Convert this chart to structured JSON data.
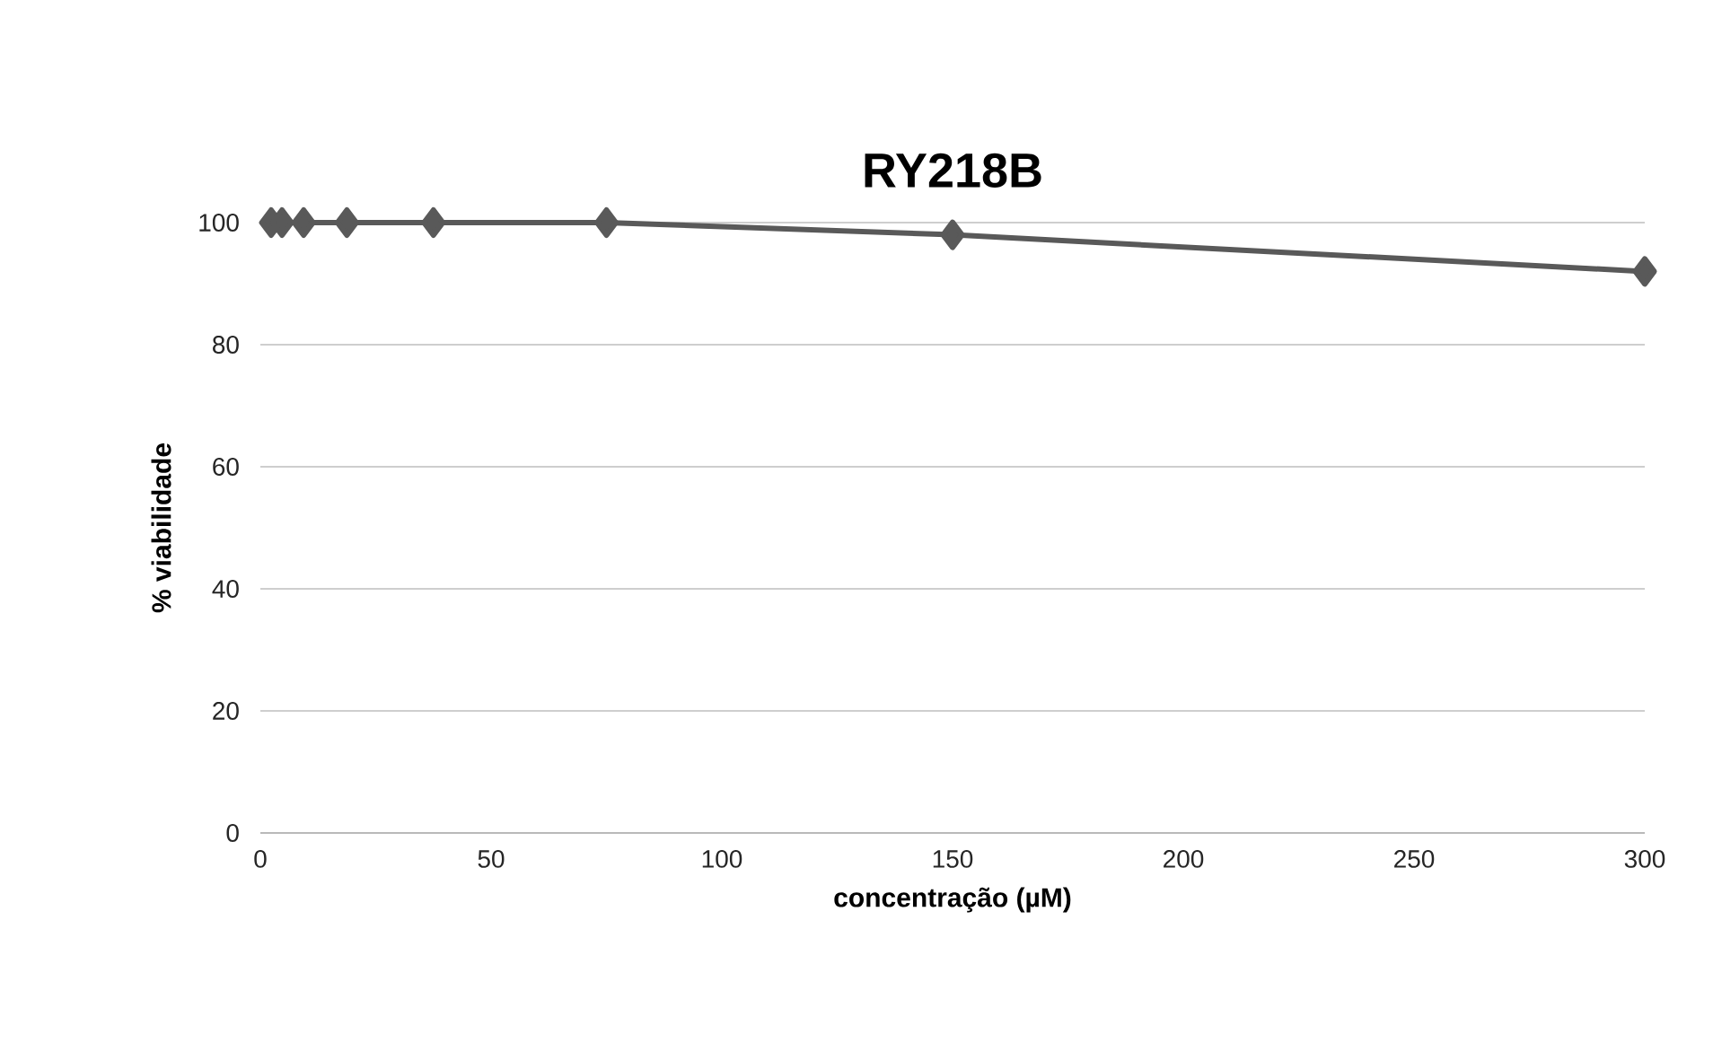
{
  "chart_data": {
    "type": "line",
    "title": "RY218B",
    "xlabel": "concentração (µM)",
    "ylabel": "% viabilidade",
    "x": [
      2.34,
      4.69,
      9.38,
      18.75,
      37.5,
      75,
      150,
      300
    ],
    "series": [
      {
        "color": "#595959",
        "values": [
          100,
          100,
          100,
          100,
          100,
          100,
          98,
          92
        ]
      }
    ],
    "xlim": [
      0,
      300
    ],
    "ylim": [
      0,
      100
    ],
    "xticks": [
      0,
      50,
      100,
      150,
      200,
      250,
      300
    ],
    "yticks": [
      0,
      20,
      40,
      60,
      80,
      100
    ],
    "grid": "y",
    "marker": "diamond",
    "line_style": "solid"
  }
}
